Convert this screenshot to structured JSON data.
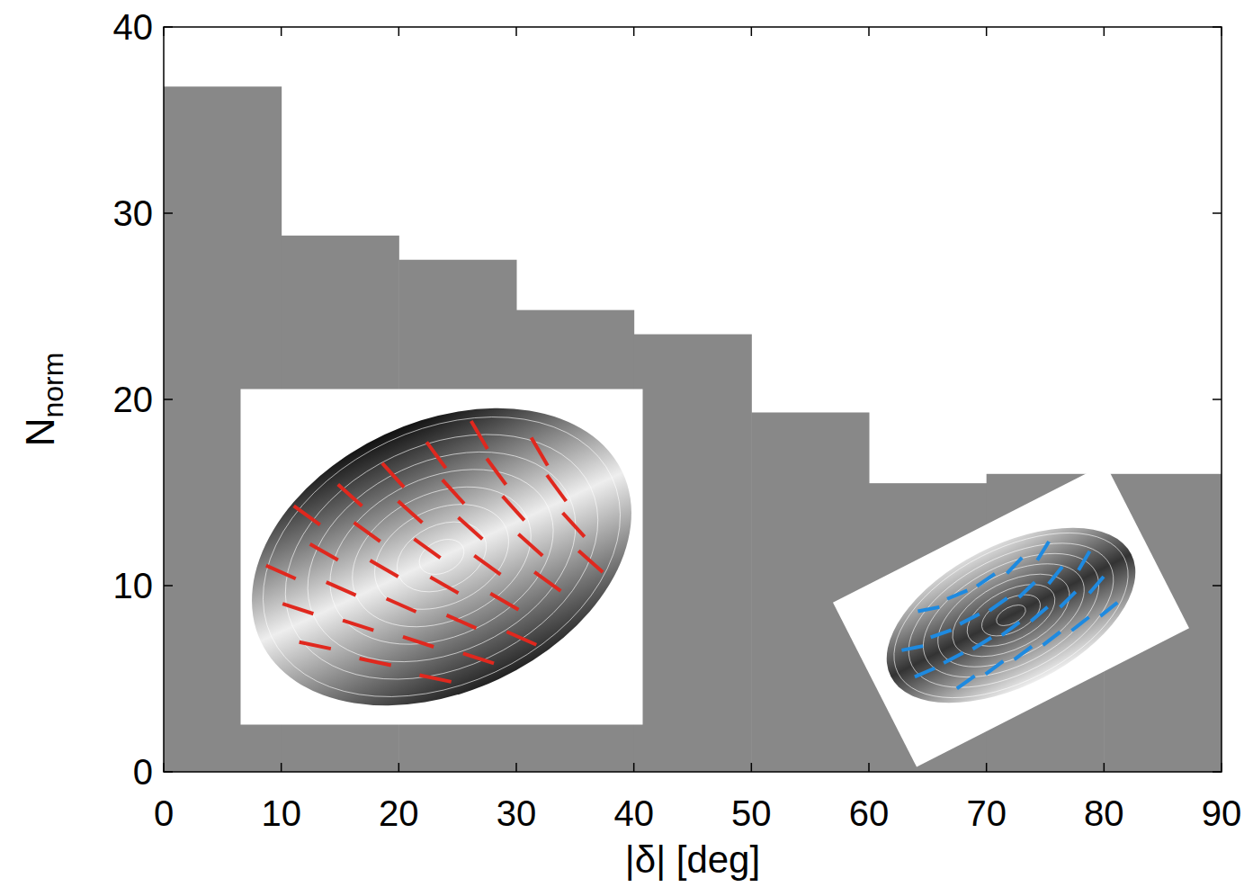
{
  "chart_data": {
    "type": "histogram",
    "x_label": "|δ| [deg]",
    "y_label": "N",
    "y_label_subscript": "norm",
    "bins": [
      0,
      10,
      20,
      30,
      40,
      50,
      60,
      70,
      80,
      90
    ],
    "values": [
      36.8,
      28.8,
      27.5,
      24.8,
      23.5,
      19.3,
      15.5,
      16,
      16
    ],
    "color": "#888888",
    "xlim": [
      0,
      90
    ],
    "xticks": [
      0,
      10,
      20,
      30,
      40,
      50,
      60,
      70,
      80,
      90
    ],
    "ylim": [
      0,
      40
    ],
    "yticks": [
      0,
      10,
      20,
      30,
      40
    ],
    "grid": false
  }
}
